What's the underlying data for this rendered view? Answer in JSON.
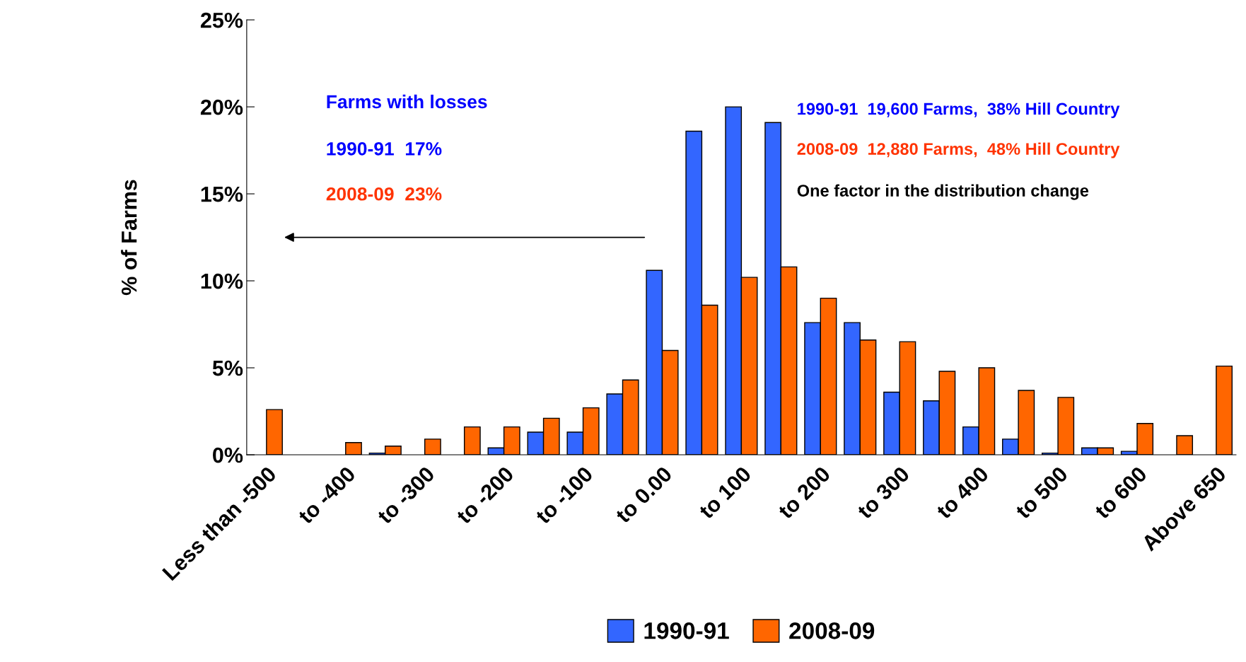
{
  "chart_data": {
    "type": "bar",
    "ylabel": "% of Farms",
    "categories": [
      "Less than -500",
      null,
      "to -400",
      null,
      "to -300",
      null,
      "to -200",
      null,
      "to -100",
      null,
      "to 0.00",
      null,
      "to 100",
      null,
      "to 200",
      null,
      "to 300",
      null,
      "to 400",
      null,
      "to 500",
      null,
      "to 600",
      null,
      "Above 650"
    ],
    "series": [
      {
        "name": "1990-91",
        "color": "#3366ff",
        "values": [
          null,
          null,
          null,
          0.1,
          null,
          null,
          0.4,
          1.3,
          1.3,
          3.5,
          10.6,
          18.6,
          20.0,
          19.1,
          7.6,
          7.6,
          3.6,
          3.1,
          1.6,
          0.9,
          0.1,
          0.4,
          0.2,
          null,
          null
        ]
      },
      {
        "name": "2008-09",
        "color": "#ff6600",
        "values": [
          2.6,
          null,
          0.7,
          0.5,
          0.9,
          1.6,
          1.6,
          2.1,
          2.7,
          4.3,
          6.0,
          8.6,
          10.2,
          10.8,
          9.0,
          6.6,
          6.5,
          4.8,
          5.0,
          3.7,
          3.3,
          0.4,
          1.8,
          1.1,
          5.1
        ]
      }
    ],
    "ylim": [
      0,
      25
    ],
    "yticks": [
      {
        "value": 0,
        "label": "0%"
      },
      {
        "value": 5,
        "label": "5%"
      },
      {
        "value": 10,
        "label": "10%"
      },
      {
        "value": 15,
        "label": "15%"
      },
      {
        "value": 20,
        "label": "20%"
      },
      {
        "value": 25,
        "label": "25%"
      }
    ],
    "annotations": [
      "Farms with losses",
      "1990-91  17%",
      "2008-09  23%",
      "1990-91  19,600 Farms,  38% Hill Country",
      "2008-09  12,880 Farms,  48% Hill Country",
      "One factor in the distribution change"
    ],
    "legend": "bottom",
    "grid": false
  }
}
